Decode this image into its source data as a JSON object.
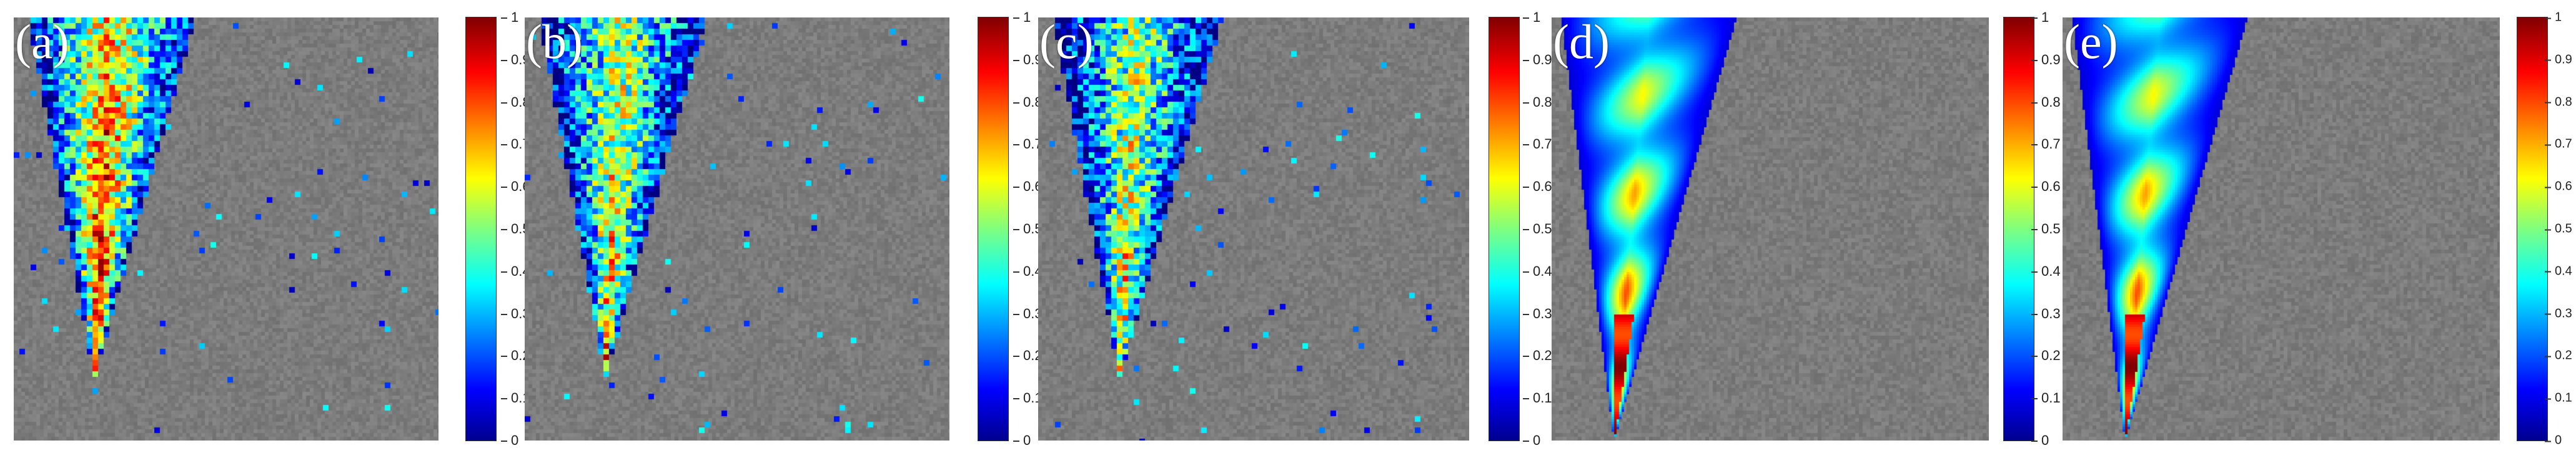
{
  "panels": [
    {
      "label": "(a)",
      "style": "sharp",
      "noise": 0.9,
      "hot": 0.95
    },
    {
      "label": "(b)",
      "style": "sharp",
      "noise": 0.8,
      "hot": 0.75
    },
    {
      "label": "(c)",
      "style": "sharp",
      "noise": 1.0,
      "hot": 0.7
    },
    {
      "label": "(d)",
      "style": "smooth",
      "noise": 0.0,
      "hot": 0.6
    },
    {
      "label": "(e)",
      "style": "smooth",
      "noise": 0.0,
      "hot": 0.55
    }
  ],
  "colorbar": {
    "ticks": [
      "0",
      "0.1",
      "0.2",
      "0.3",
      "0.4",
      "0.5",
      "0.6",
      "0.7",
      "0.8",
      "0.9",
      "1"
    ],
    "colors": [
      "#00008f",
      "#0000ff",
      "#00ffff",
      "#ffff00",
      "#ff0000",
      "#800000"
    ]
  }
}
